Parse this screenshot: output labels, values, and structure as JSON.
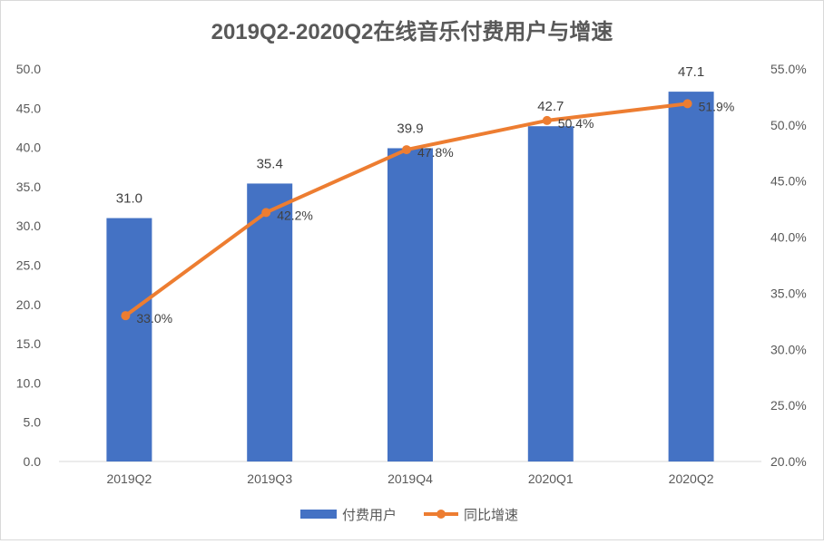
{
  "chart_data": {
    "type": "bar+line",
    "title": "2019Q2-2020Q2在线音乐付费用户与增速",
    "categories": [
      "2019Q2",
      "2019Q3",
      "2019Q4",
      "2020Q1",
      "2020Q2"
    ],
    "series": [
      {
        "name": "付费用户",
        "type": "bar",
        "axis": "left",
        "color": "#4472C4",
        "values": [
          31.0,
          35.4,
          39.9,
          42.7,
          47.1
        ],
        "labels": [
          "31.0",
          "35.4",
          "39.9",
          "42.7",
          "47.1"
        ]
      },
      {
        "name": "同比增速",
        "type": "line",
        "axis": "right",
        "color": "#ED7D31",
        "values": [
          33.0,
          42.2,
          47.8,
          50.4,
          51.9
        ],
        "labels": [
          "33.0%",
          "42.2%",
          "47.8%",
          "50.4%",
          "51.9%"
        ]
      }
    ],
    "y_left": {
      "range": [
        0,
        50
      ],
      "ticks": [
        "0.0",
        "5.0",
        "10.0",
        "15.0",
        "20.0",
        "25.0",
        "30.0",
        "35.0",
        "40.0",
        "45.0",
        "50.0"
      ]
    },
    "y_right": {
      "range": [
        20,
        55
      ],
      "ticks": [
        "20.0%",
        "25.0%",
        "30.0%",
        "35.0%",
        "40.0%",
        "45.0%",
        "50.0%",
        "55.0%"
      ]
    },
    "grid": false,
    "legend": "bottom"
  }
}
